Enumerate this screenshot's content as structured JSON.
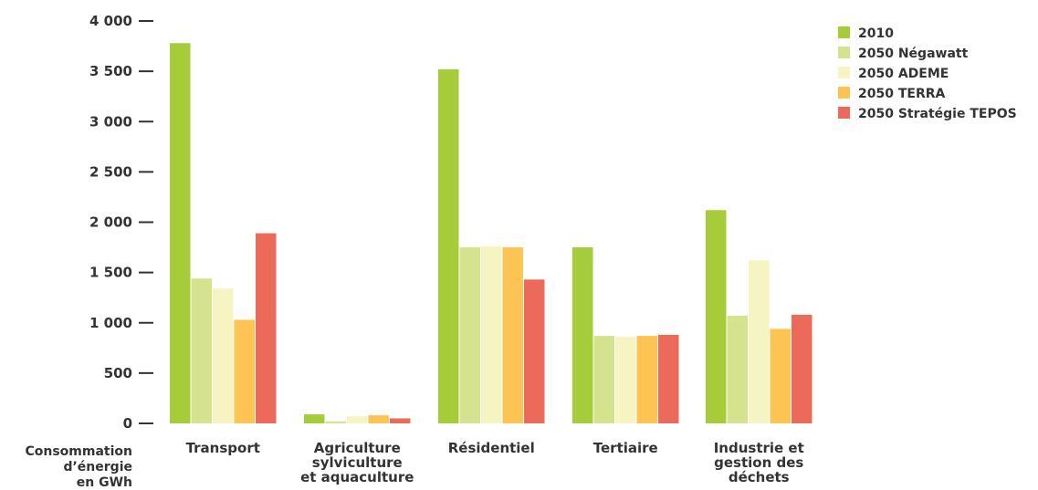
{
  "chart_data": {
    "type": "bar",
    "title": "",
    "ylabel_lines": [
      "Consommation",
      "d’énergie",
      "en GWh"
    ],
    "xlabel": "",
    "ylim": [
      0,
      4000
    ],
    "yticks": [
      0,
      500,
      1000,
      1500,
      2000,
      2500,
      3000,
      3500,
      4000
    ],
    "ytick_labels": [
      "0",
      "500",
      "1 000",
      "1 500",
      "2 000",
      "2 500",
      "3 000",
      "3 500",
      "4 000"
    ],
    "grid": false,
    "legend_position": "top-right",
    "categories": [
      [
        "Transport"
      ],
      [
        "Agriculture",
        "sylviculture",
        "et aquaculture"
      ],
      [
        "Résidentiel"
      ],
      [
        "Tertiaire"
      ],
      [
        "Industrie et",
        "gestion des",
        "déchets"
      ]
    ],
    "series": [
      {
        "name": "2010",
        "color": "#a7cc39",
        "values": [
          3780,
          90,
          3520,
          1750,
          2120
        ]
      },
      {
        "name": "2050 Négawatt",
        "color": "#d5e38e",
        "values": [
          1440,
          20,
          1750,
          870,
          1070
        ]
      },
      {
        "name": "2050 ADEME",
        "color": "#f6f4c2",
        "values": [
          1340,
          70,
          1760,
          860,
          1620
        ]
      },
      {
        "name": "2050 TERRA",
        "color": "#fdc454",
        "values": [
          1030,
          80,
          1750,
          870,
          940
        ]
      },
      {
        "name": "2050 Stratégie TEPOS",
        "color": "#ec6a5a",
        "values": [
          1890,
          50,
          1430,
          880,
          1080
        ]
      }
    ]
  }
}
